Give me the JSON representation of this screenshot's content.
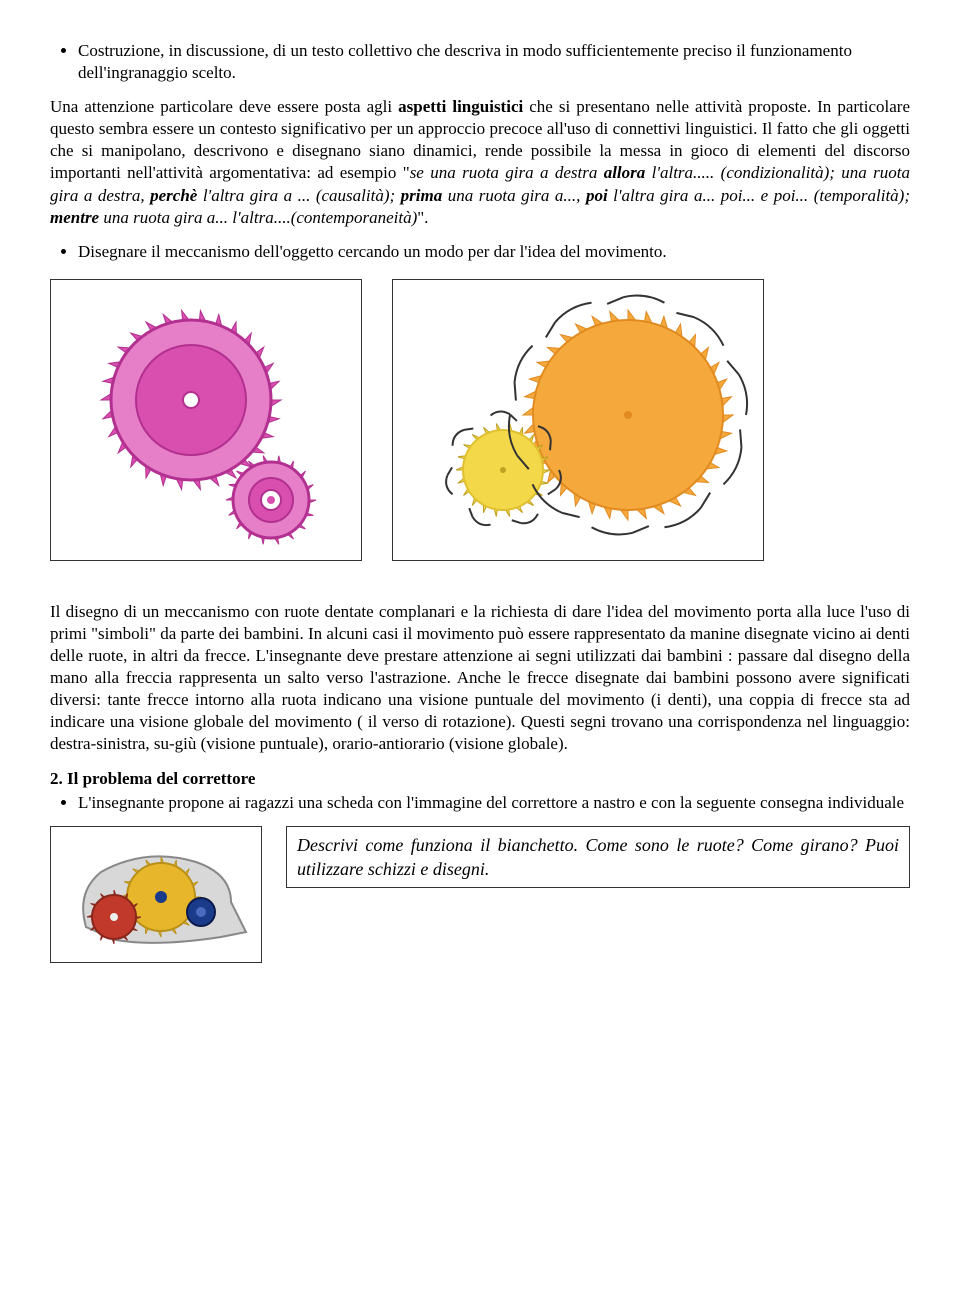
{
  "bullets_top": [
    "Costruzione, in discussione, di un testo collettivo che descriva in modo sufficientemente preciso il funzionamento dell'ingranaggio scelto."
  ],
  "para1_parts": {
    "a": "Una attenzione particolare deve essere posta agli ",
    "b_bold": "aspetti linguistici",
    "c": " che si presentano nelle attività proposte. In particolare questo sembra essere un contesto significativo per un approccio precoce all'uso di connettivi linguistici. Il fatto che gli oggetti che si manipolano, descrivono e disegnano siano dinamici,  rende possibile la messa in gioco  di elementi del discorso importanti nell'attività argomentativa:  ad esempio \"",
    "d_ital": "se una ruota gira a destra  ",
    "e_bolditalic": "allora",
    "f_ital": " l'altra..... (condizionalità); una ruota gira a destra, ",
    "g_bolditalic": "perchè",
    "h_ital": " l'altra gira a ... (causalità); ",
    "i_bolditalic": "prima",
    "j_ital": " una ruota gira a..., ",
    "k_bolditalic": "poi",
    "l_ital": " l'altra gira a... poi... e poi... (temporalità); ",
    "m_bolditalic": "mentre",
    "n_ital": " una ruota gira a... l'altra....(contemporaneità)",
    "o": "\"."
  },
  "bullets_mid": [
    "Disegnare il meccanismo dell'oggetto cercando un modo per dar l'idea del movimento."
  ],
  "gear_colors": {
    "pink_outer": "#d94fb0",
    "pink_mid": "#e77fc8",
    "pink_dark": "#b23090",
    "orange_big": "#f5a93d",
    "orange_edge": "#e08a1f",
    "yellow_small": "#f3d94a",
    "arrow": "#333333"
  },
  "para2": "Il disegno di un meccanismo con ruote dentate complanari e la richiesta di dare l'idea del movimento porta alla luce l'uso di primi \"simboli\" da parte dei bambini. In alcuni casi il movimento può essere rappresentato da manine disegnate vicino ai denti delle ruote, in altri da frecce. L'insegnante deve prestare attenzione ai segni utilizzati dai bambini : passare dal disegno della mano alla freccia rappresenta un salto verso l'astrazione. Anche le frecce disegnate dai bambini possono avere significati diversi: tante frecce intorno alla ruota indicano una visione puntuale del movimento (i denti), una coppia di frecce sta ad indicare una visione globale del movimento ( il verso di rotazione). Questi segni trovano una corrispondenza nel linguaggio: destra-sinistra, su-giù (visione puntuale), orario-antiorario (visione globale).",
  "section2_label": "2. Il problema del correttore",
  "bullets_bottom": [
    "L'insegnante propone ai ragazzi una scheda con l'immagine del correttore a nastro e con la seguente consegna individuale"
  ],
  "corrector_colors": {
    "body": "#d8d8d8",
    "big_gear": "#e8b62a",
    "small_gear": "#c0392b",
    "knob": "#1a3a8a"
  },
  "prompt_text": "Descrivi come funziona il bianchetto. Come sono le ruote? Come girano? Puoi utilizzare schizzi e disegni."
}
